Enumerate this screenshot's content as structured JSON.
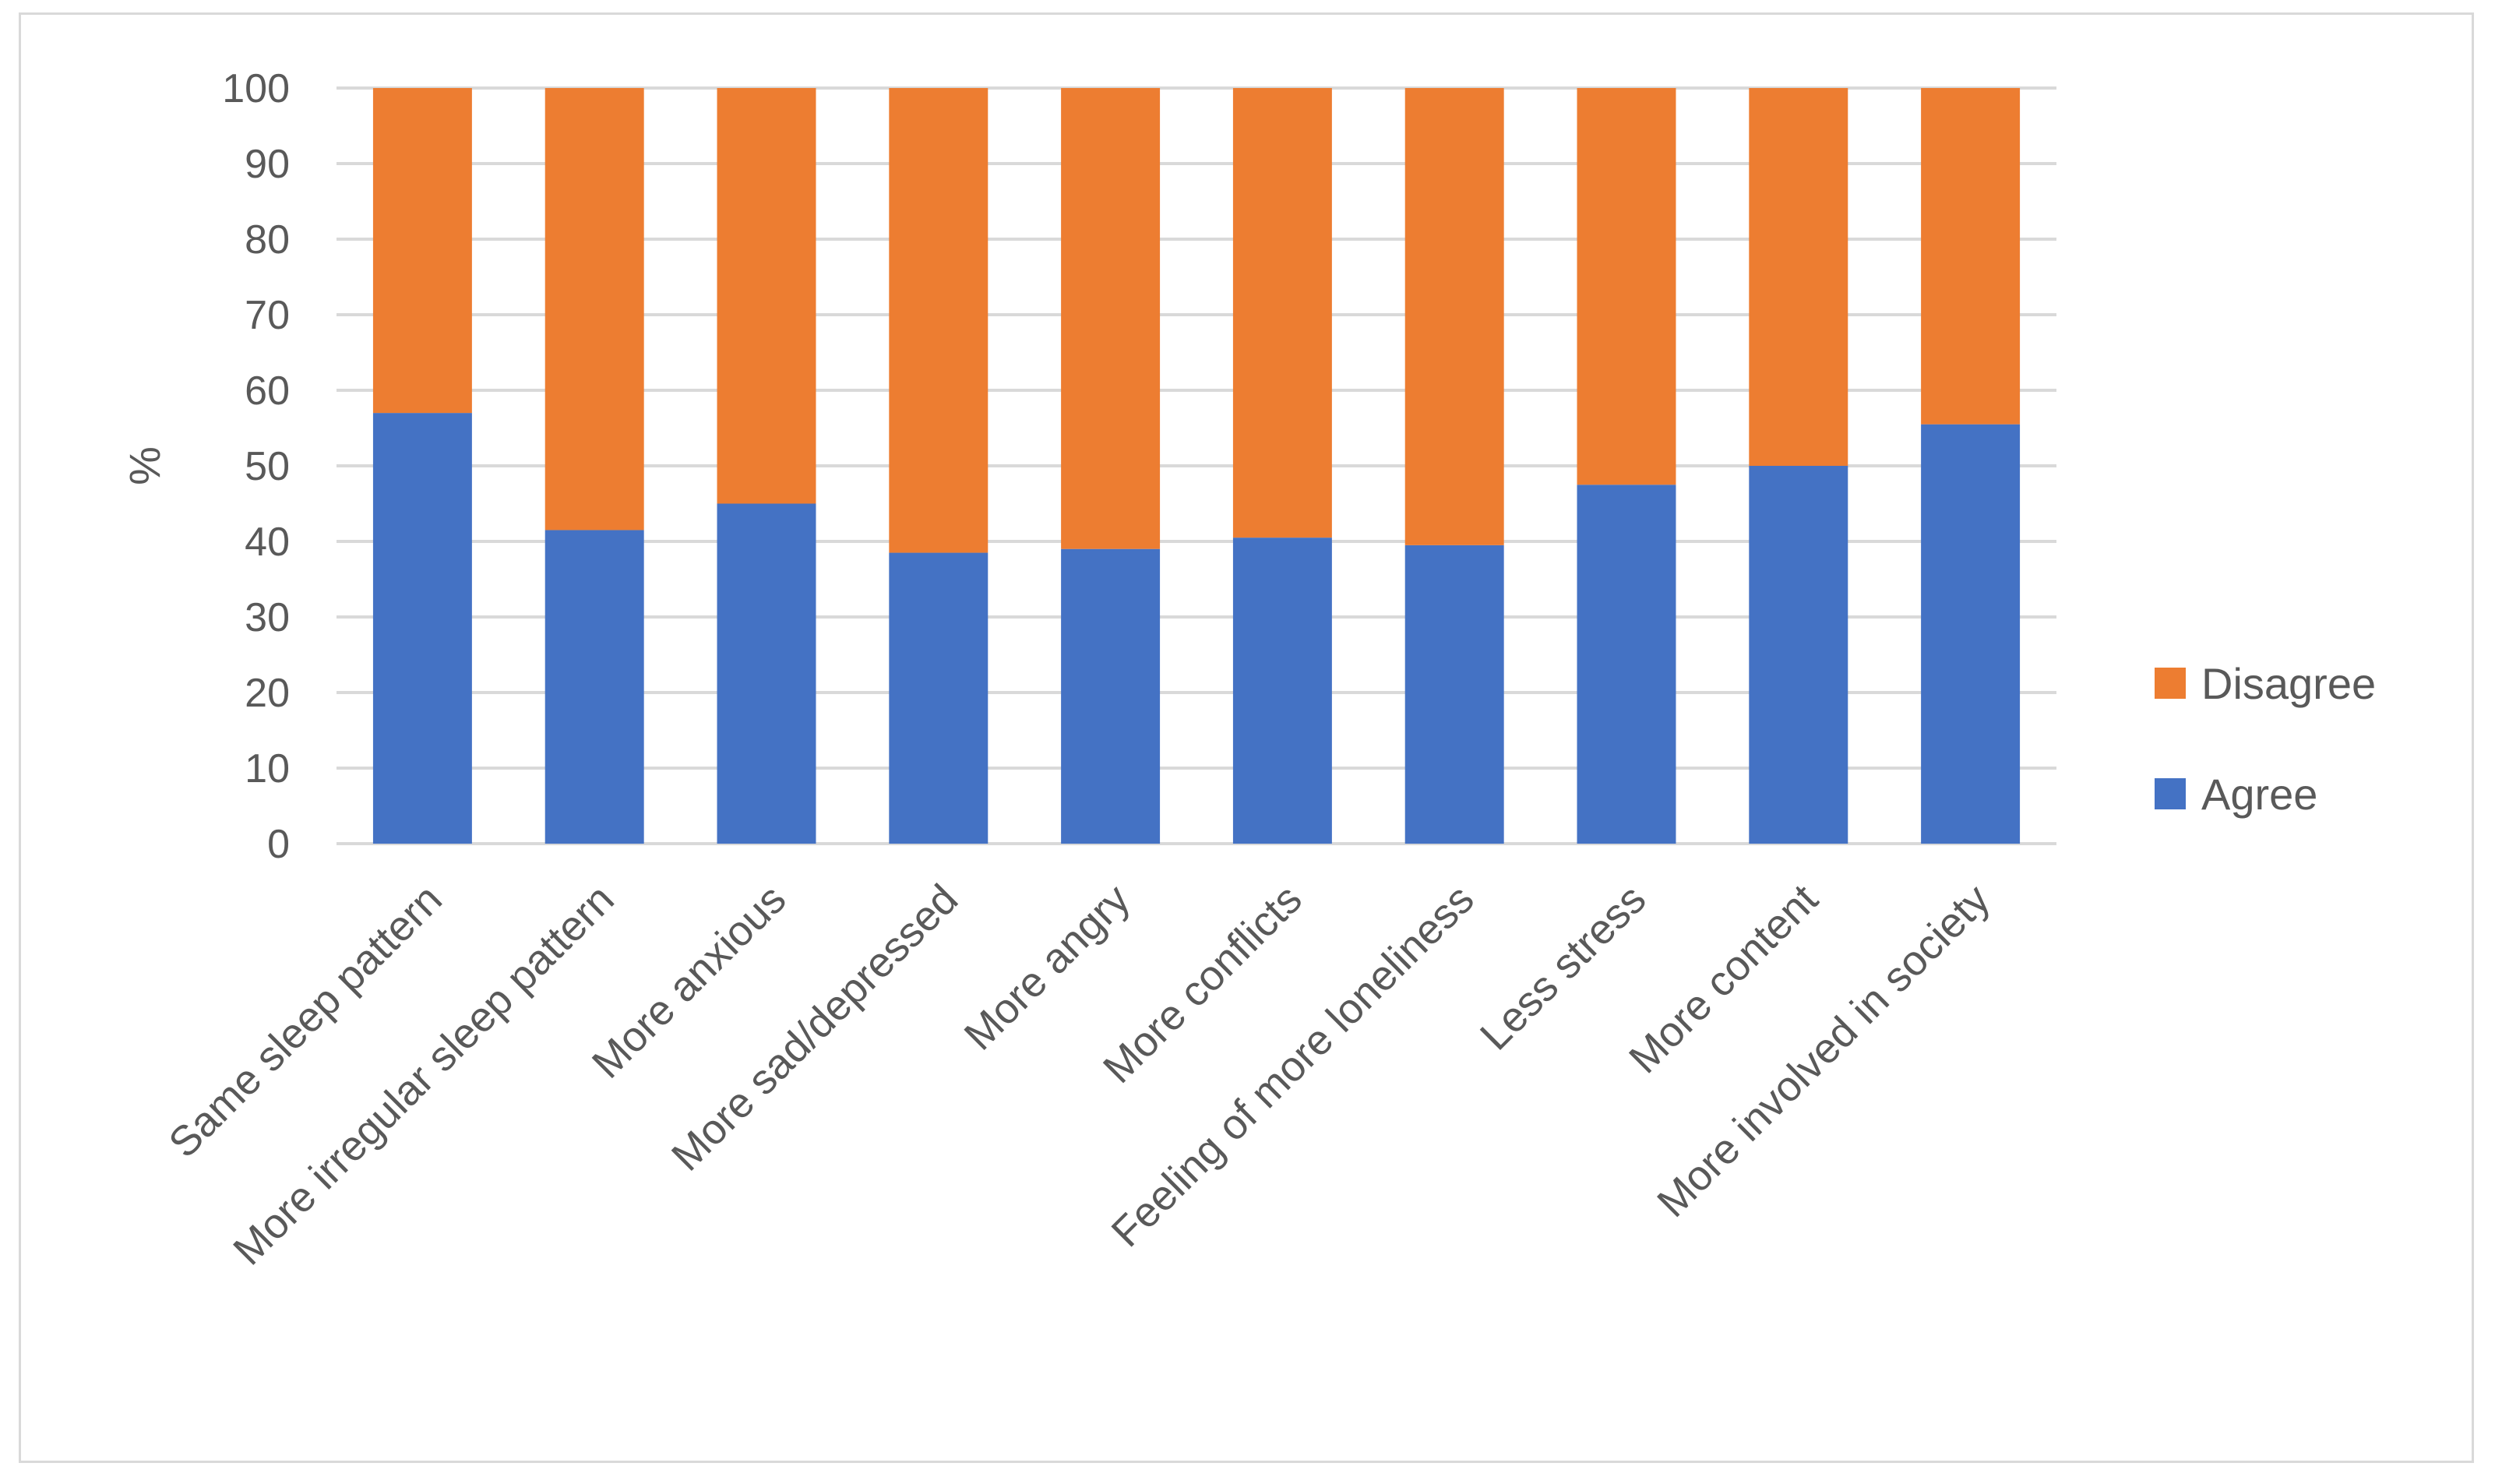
{
  "chart_data": {
    "type": "bar",
    "stacked": true,
    "title": "",
    "xlabel": "",
    "ylabel": "%",
    "ylim": [
      0,
      100
    ],
    "yticks": [
      0,
      10,
      20,
      30,
      40,
      50,
      60,
      70,
      80,
      90,
      100
    ],
    "grid": true,
    "legend_position": "right",
    "categories": [
      "Same sleep pattern",
      "More irregular sleep pattern",
      "More anxious",
      "More sad/depressed",
      "More angry",
      "More conflicts",
      "Feeling of more loneliness",
      "Less stress",
      "More content",
      "More involved in society"
    ],
    "series": [
      {
        "name": "Agree",
        "color": "#4472c4",
        "values": [
          57,
          41.5,
          45,
          38.5,
          39,
          40.5,
          39.5,
          47.5,
          50,
          55.5
        ]
      },
      {
        "name": "Disagree",
        "color": "#ed7d31",
        "values": [
          43,
          58.5,
          55,
          61.5,
          61,
          59.5,
          60.5,
          52.5,
          50,
          44.5
        ]
      }
    ],
    "legend_order": [
      "Disagree",
      "Agree"
    ],
    "colors": {
      "gridline": "#d9d9d9",
      "text": "#595959",
      "frame": "#d9d9d9"
    }
  }
}
